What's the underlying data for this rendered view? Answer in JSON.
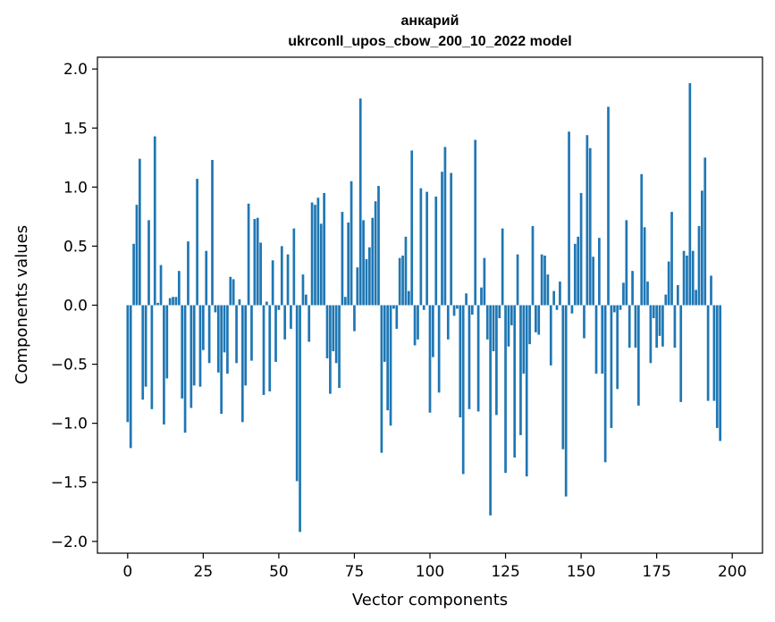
{
  "chart_data": {
    "type": "bar",
    "title_line1": "анкарий",
    "title_line2": "ukrconll_upos_cbow_200_10_2022 model",
    "xlabel": "Vector components",
    "ylabel": "Components values",
    "xlim": [
      -10,
      210
    ],
    "ylim": [
      -2.1,
      2.1
    ],
    "x_ticks": [
      0,
      25,
      50,
      75,
      100,
      125,
      150,
      175,
      200
    ],
    "x_tick_labels": [
      "0",
      "25",
      "50",
      "75",
      "100",
      "125",
      "150",
      "175",
      "200"
    ],
    "y_ticks": [
      2.0,
      1.5,
      1.0,
      0.5,
      0.0,
      -0.5,
      -1.0,
      -1.5,
      -2.0
    ],
    "y_tick_labels": [
      "2.0",
      "1.5",
      "1.0",
      "0.5",
      "0.0",
      "−0.5",
      "−1.0",
      "−1.5",
      "−2.0"
    ],
    "bar_color": "#1f77b4",
    "values": [
      -0.99,
      -1.21,
      0.52,
      0.85,
      1.24,
      -0.8,
      -0.69,
      0.72,
      -0.88,
      1.43,
      0.02,
      0.34,
      -1.01,
      -0.62,
      0.06,
      0.07,
      0.07,
      0.29,
      -0.79,
      -1.08,
      0.54,
      -0.87,
      -0.68,
      1.07,
      -0.69,
      -0.38,
      0.46,
      -0.49,
      1.23,
      -0.06,
      -0.57,
      -0.92,
      -0.4,
      -0.58,
      0.24,
      0.22,
      -0.49,
      0.05,
      -0.99,
      -0.68,
      0.86,
      -0.47,
      0.73,
      0.74,
      0.53,
      -0.76,
      0.03,
      -0.73,
      0.38,
      -0.48,
      -0.04,
      0.5,
      -0.29,
      0.43,
      -0.2,
      0.65,
      -1.49,
      -1.92,
      0.26,
      0.09,
      -0.31,
      0.87,
      0.85,
      0.91,
      0.69,
      0.95,
      -0.45,
      -0.75,
      -0.39,
      -0.49,
      -0.7,
      0.79,
      0.07,
      0.7,
      1.05,
      -0.22,
      0.32,
      1.75,
      0.72,
      0.39,
      0.49,
      0.74,
      0.88,
      1.01,
      -1.25,
      -0.48,
      -0.89,
      -1.02,
      -0.03,
      -0.2,
      0.4,
      0.42,
      0.58,
      0.12,
      1.31,
      -0.34,
      -0.29,
      0.99,
      -0.04,
      0.96,
      -0.91,
      -0.44,
      0.92,
      -0.74,
      1.13,
      1.34,
      -0.29,
      1.12,
      -0.09,
      -0.03,
      -0.95,
      -1.43,
      0.1,
      -0.88,
      -0.08,
      1.4,
      -0.9,
      0.15,
      0.4,
      -0.29,
      -1.78,
      -0.39,
      -0.93,
      -0.11,
      0.65,
      -1.42,
      -0.35,
      -0.17,
      -1.29,
      0.43,
      -1.1,
      -0.58,
      -1.45,
      -0.33,
      0.67,
      -0.23,
      -0.25,
      0.43,
      0.42,
      0.26,
      -0.51,
      0.12,
      -0.04,
      0.2,
      -1.22,
      -1.62,
      1.47,
      -0.07,
      0.52,
      0.58,
      0.95,
      -0.28,
      1.44,
      1.33,
      0.41,
      -0.58,
      0.57,
      -0.58,
      -1.33,
      1.68,
      -1.04,
      -0.06,
      -0.71,
      -0.04,
      0.19,
      0.72,
      -0.36,
      0.29,
      -0.36,
      -0.85,
      1.11,
      0.66,
      0.2,
      -0.49,
      -0.11,
      -0.36,
      -0.26,
      -0.35,
      0.09,
      0.37,
      0.79,
      -0.36,
      0.17,
      -0.82,
      0.46,
      0.42,
      1.88,
      0.46,
      0.13,
      0.67,
      0.97,
      1.25,
      -0.81,
      0.25,
      -0.81,
      -1.04,
      -1.15
    ]
  }
}
